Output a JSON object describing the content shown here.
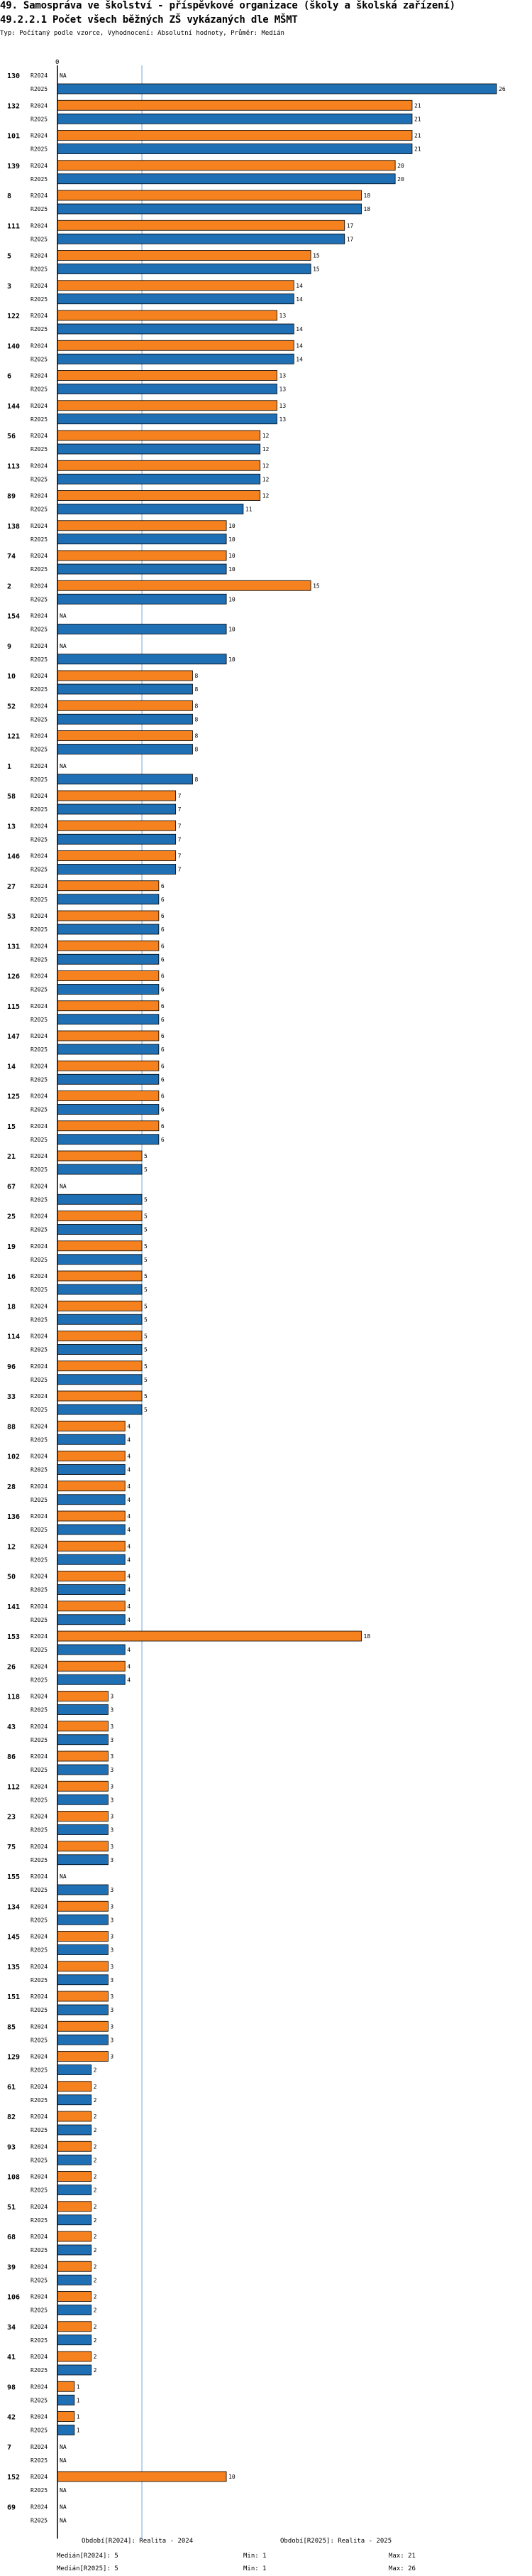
{
  "header": {
    "title": "49. Samospráva ve školství - příspěvkové organizace (školy a školská zařízení)",
    "subtitle": "49.2.2.1 Počet všech běžných ZŠ vykázaných dle MŠMT",
    "meta": "Typ: Počítaný podle vzorce, Vyhodnocení: Absolutní hodnoty, Průměr: Medián"
  },
  "colors": {
    "r2024": "#f5821f",
    "r2025": "#1f6fb5",
    "median_line": "#6fa8dc",
    "axis": "#000000"
  },
  "chart_data": {
    "type": "bar",
    "orientation": "horizontal",
    "series_names": [
      "R2024",
      "R2025"
    ],
    "xlim": [
      0,
      26
    ],
    "x_ticks": [
      0
    ],
    "median": 5,
    "missing_label": "NA",
    "categories": [
      "130",
      "132",
      "101",
      "139",
      "8",
      "111",
      "5",
      "3",
      "122",
      "140",
      "6",
      "144",
      "56",
      "113",
      "89",
      "138",
      "74",
      "2",
      "154",
      "9",
      "10",
      "52",
      "121",
      "1",
      "58",
      "13",
      "146",
      "27",
      "53",
      "131",
      "126",
      "115",
      "147",
      "14",
      "125",
      "15",
      "21",
      "67",
      "25",
      "19",
      "16",
      "18",
      "114",
      "96",
      "33",
      "88",
      "102",
      "28",
      "136",
      "12",
      "50",
      "141",
      "153",
      "26",
      "118",
      "43",
      "86",
      "112",
      "23",
      "75",
      "155",
      "134",
      "145",
      "135",
      "151",
      "85",
      "129",
      "61",
      "82",
      "93",
      "108",
      "51",
      "68",
      "39",
      "106",
      "34",
      "41",
      "98",
      "42",
      "7",
      "152",
      "69"
    ],
    "r2024": [
      null,
      21,
      21,
      20,
      18,
      17,
      15,
      14,
      13,
      14,
      13,
      13,
      12,
      12,
      12,
      10,
      10,
      15,
      null,
      null,
      8,
      8,
      8,
      null,
      7,
      7,
      7,
      6,
      6,
      6,
      6,
      6,
      6,
      6,
      6,
      6,
      5,
      null,
      5,
      5,
      5,
      5,
      5,
      5,
      5,
      4,
      4,
      4,
      4,
      4,
      4,
      4,
      18,
      4,
      3,
      3,
      3,
      3,
      3,
      3,
      null,
      3,
      3,
      3,
      3,
      3,
      3,
      2,
      2,
      2,
      2,
      2,
      2,
      2,
      2,
      2,
      2,
      1,
      1,
      null,
      10,
      null
    ],
    "r2025": [
      26,
      21,
      21,
      20,
      18,
      17,
      15,
      14,
      14,
      14,
      13,
      13,
      12,
      12,
      11,
      10,
      10,
      10,
      10,
      10,
      8,
      8,
      8,
      8,
      7,
      7,
      7,
      6,
      6,
      6,
      6,
      6,
      6,
      6,
      6,
      6,
      5,
      5,
      5,
      5,
      5,
      5,
      5,
      5,
      5,
      4,
      4,
      4,
      4,
      4,
      4,
      4,
      4,
      4,
      3,
      3,
      3,
      3,
      3,
      3,
      3,
      3,
      3,
      3,
      3,
      3,
      2,
      2,
      2,
      2,
      2,
      2,
      2,
      2,
      2,
      2,
      2,
      1,
      1,
      null,
      null,
      null
    ]
  },
  "footer": {
    "period_2024": "Období[R2024]: Realita - 2024",
    "period_2025": "Období[R2025]: Realita - 2025",
    "median_2024": "Medián[R2024]: 5",
    "median_2025": "Medián[R2025]: 5",
    "min_2024": "Min: 1",
    "min_2025": "Min: 1",
    "max_2024": "Max: 21",
    "max_2025": "Max: 26"
  }
}
